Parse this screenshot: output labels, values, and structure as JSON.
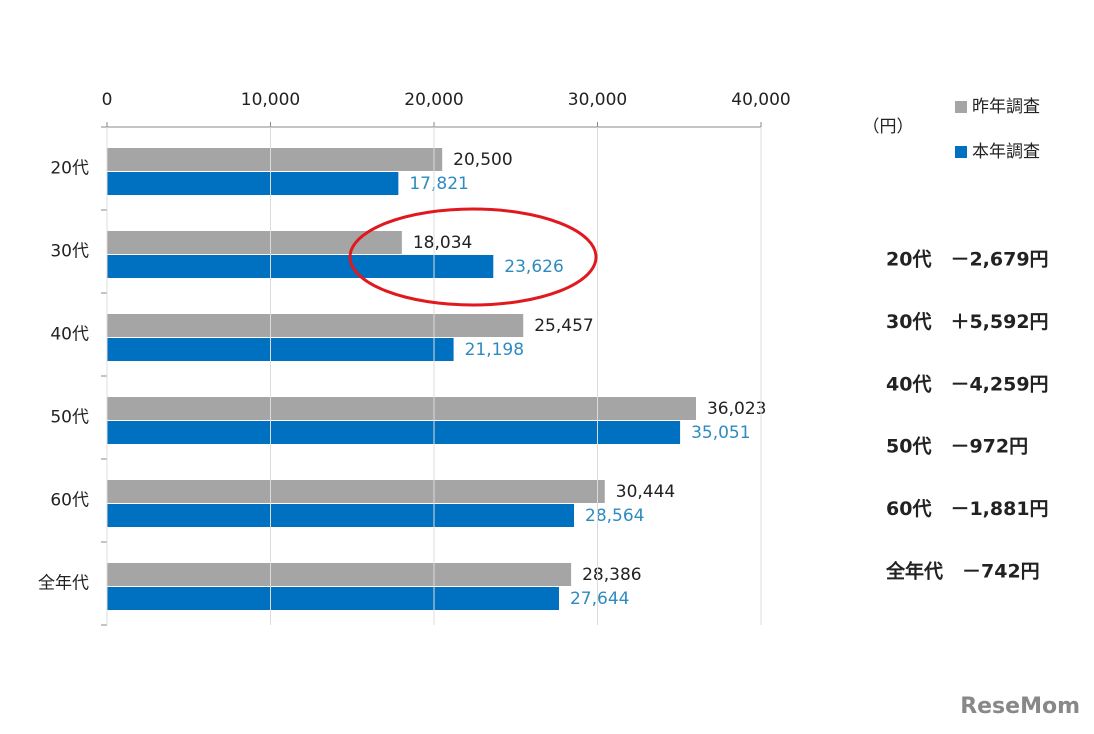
{
  "chart_data": {
    "type": "hbar",
    "unit_label": "（円）",
    "categories": [
      "20代",
      "30代",
      "40代",
      "50代",
      "60代",
      "全年代"
    ],
    "series": [
      {
        "name": "昨年調査",
        "color": "#a5a5a5",
        "label_color": "#222222",
        "values": [
          20500,
          18034,
          25457,
          36023,
          30444,
          28386
        ],
        "value_labels": [
          "20,500",
          "18,034",
          "25,457",
          "36,023",
          "30,444",
          "28,386"
        ]
      },
      {
        "name": "本年調査",
        "color": "#0070c0",
        "label_color": "#2e8bc0",
        "values": [
          17821,
          23626,
          21198,
          35051,
          28564,
          27644
        ],
        "value_labels": [
          "17,821",
          "23,626",
          "21,198",
          "35,051",
          "28,564",
          "27,644"
        ]
      }
    ],
    "xlim": [
      0,
      40000
    ],
    "xticks": [
      0,
      {
        "value": 10000,
        "label": "10,000"
      },
      {
        "value": 20000,
        "label": "20,000"
      },
      {
        "value": 30000,
        "label": "30,000"
      },
      {
        "value": 40000,
        "label": "40,000"
      }
    ],
    "grid": true,
    "annotations": [
      "20代　－2,679円",
      "30代　＋5,592円",
      "40代　－4,259円",
      "50代　－972円",
      "60代　－1,881円",
      "全年代　－742円"
    ],
    "logo": "ReseMom"
  }
}
